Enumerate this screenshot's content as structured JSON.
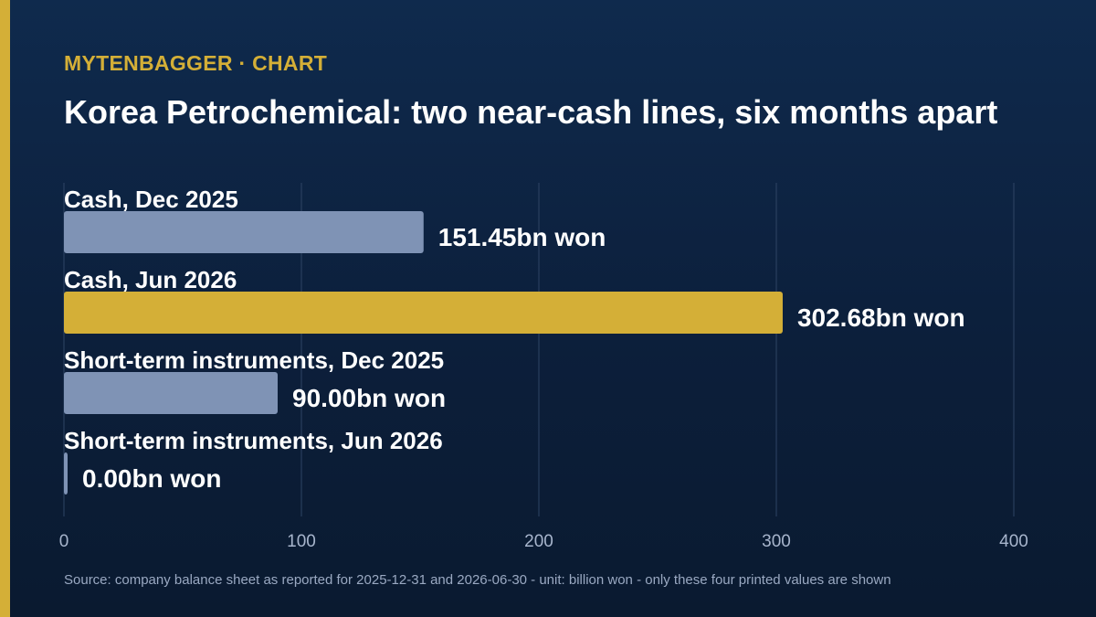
{
  "header": {
    "brand": "MYTENBAGGER · CHART",
    "title": "Korea Petrochemical: two near-cash lines, six months apart"
  },
  "footer": {
    "source": "Source: company balance sheet as reported for 2025-12-31 and 2026-06-30 - unit: billion won - only these four printed values are shown"
  },
  "colors": {
    "accent": "#d4af37",
    "bar_default": "#7f93b5",
    "gridline": "#2e4464",
    "tick_text": "#a7b5cc"
  },
  "chart_data": {
    "type": "bar",
    "orientation": "horizontal",
    "categories": [
      "Cash, Dec 2025",
      "Cash, Jun 2026",
      "Short-term instruments, Dec 2025",
      "Short-term instruments, Jun 2026"
    ],
    "values": [
      151.45,
      302.68,
      90.0,
      0.0
    ],
    "value_labels": [
      "151.45bn won",
      "302.68bn won",
      "90.00bn won",
      "0.00bn won"
    ],
    "highlight_index": 1,
    "xlim": [
      0,
      400
    ],
    "xticks": [
      0,
      100,
      200,
      300,
      400
    ],
    "grid": true,
    "legend": "none"
  }
}
